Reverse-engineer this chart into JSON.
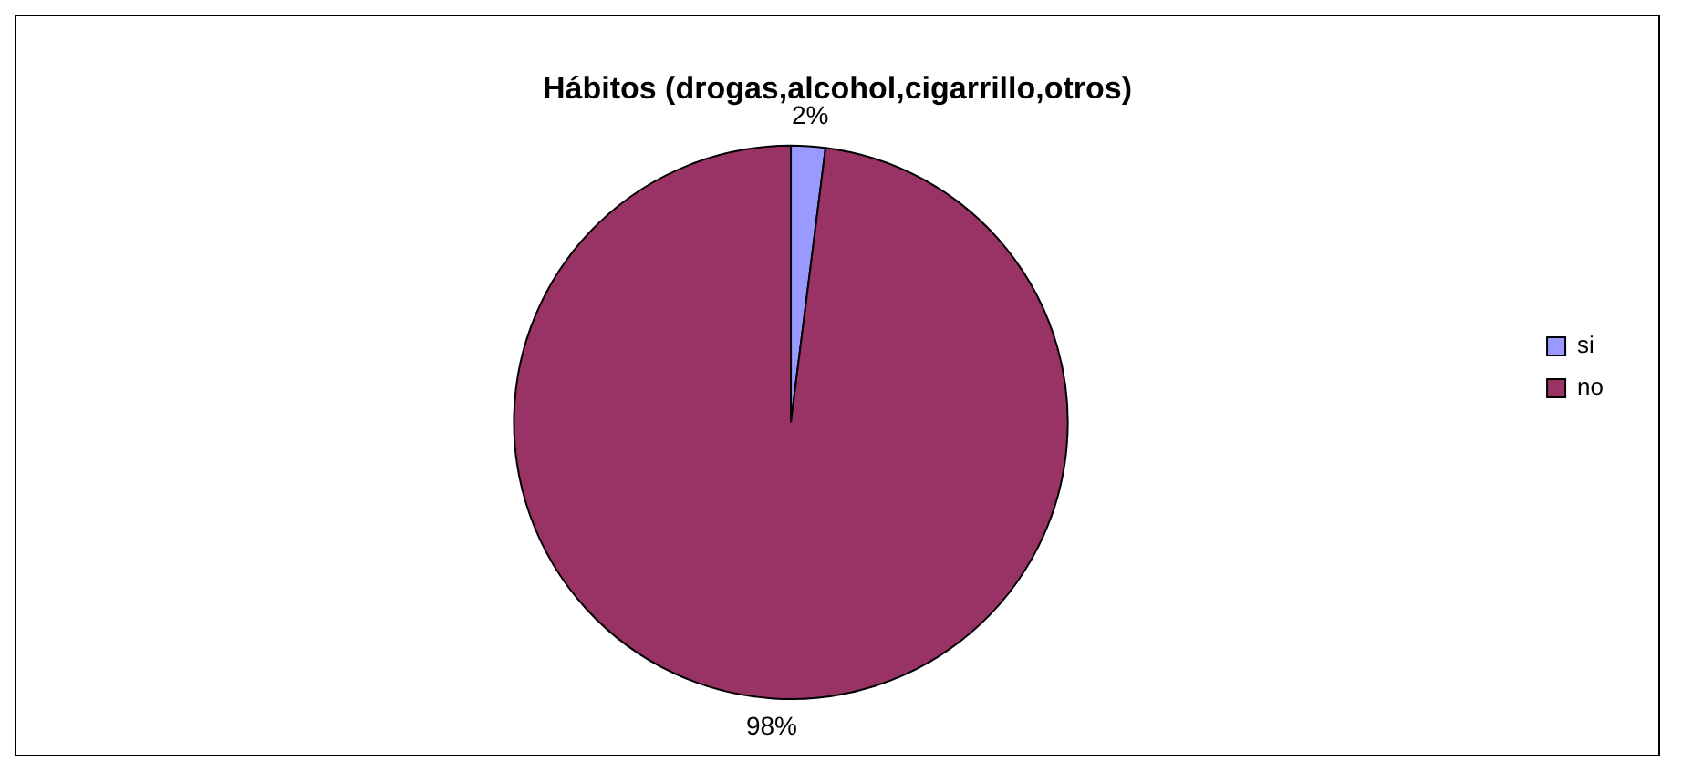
{
  "chart_data": {
    "type": "pie",
    "title": "Hábitos (drogas,alcohol,cigarrillo,otros)",
    "categories": [
      "si",
      "no"
    ],
    "values": [
      2,
      98
    ],
    "value_labels": [
      "2%",
      "98%"
    ],
    "colors": [
      "#9999ff",
      "#993366"
    ],
    "legend": "right"
  }
}
